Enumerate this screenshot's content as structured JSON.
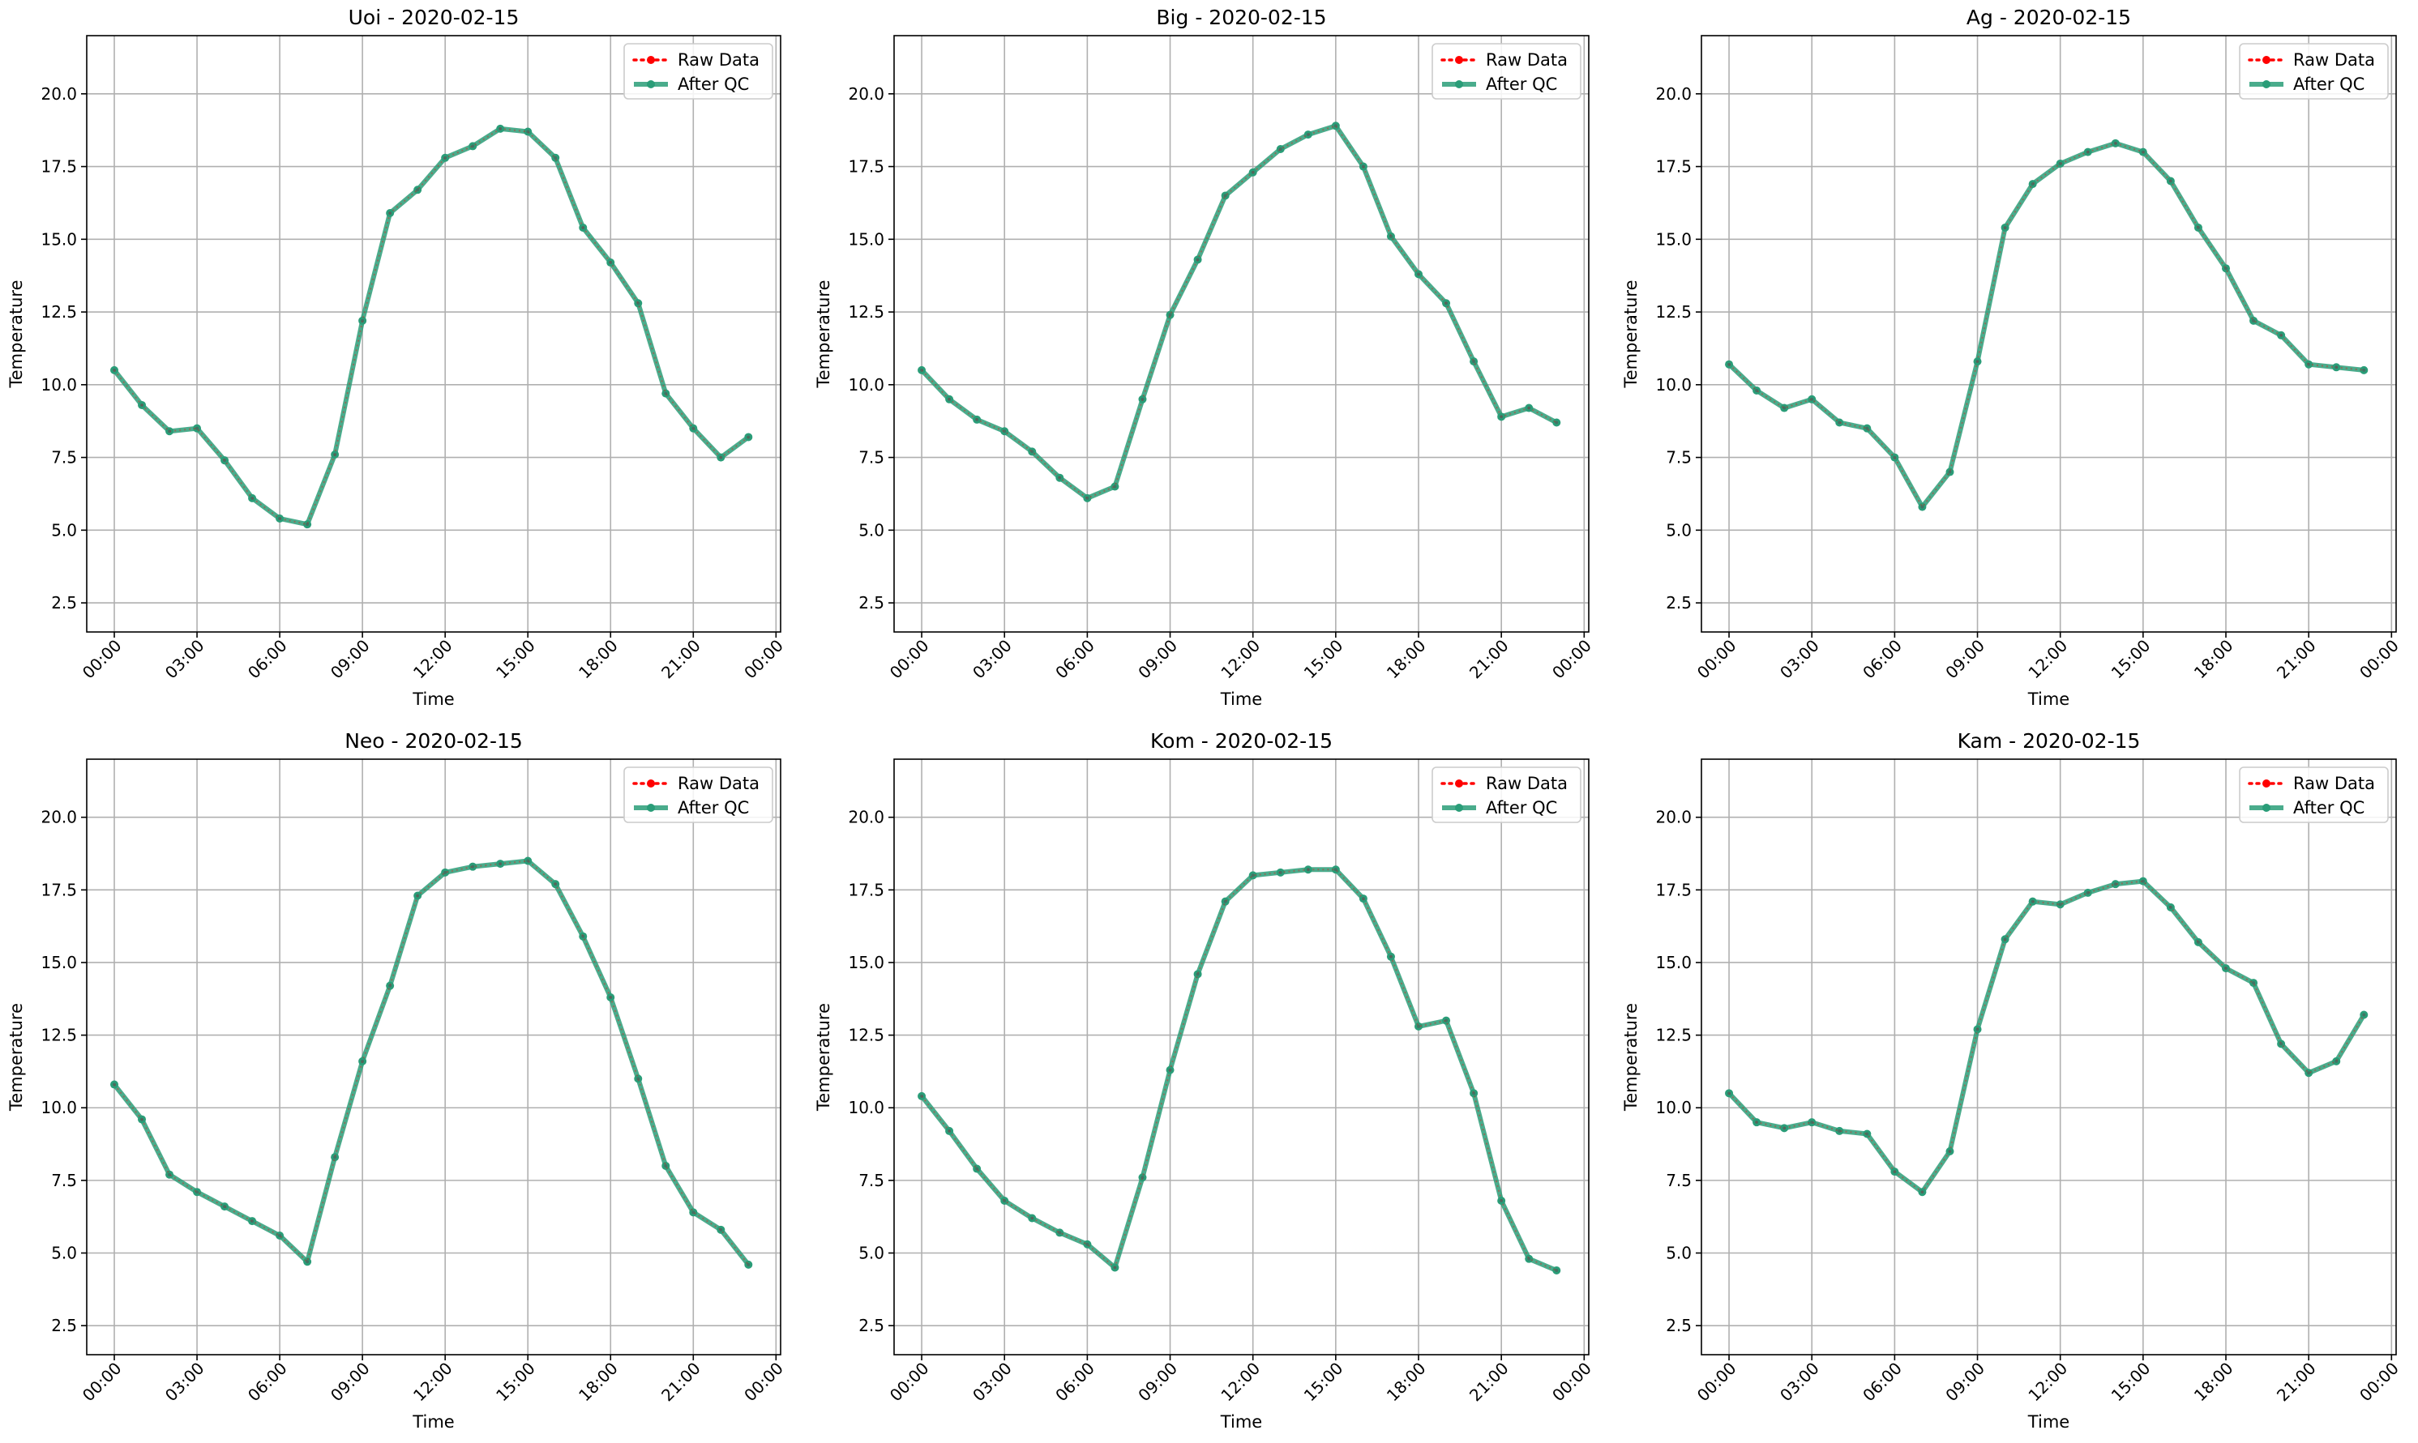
{
  "colors": {
    "raw": "#ff0000",
    "qc": "#2a9d78",
    "grid": "#b0b0b0",
    "axis": "#000000",
    "legend_border": "#cccccc"
  },
  "chart_data": [
    {
      "type": "line",
      "title": "Uoi - 2020-02-15",
      "xlabel": "Time",
      "ylabel": "Temperature",
      "x_tick_labels": [
        "00:00",
        "03:00",
        "06:00",
        "09:00",
        "12:00",
        "15:00",
        "18:00",
        "21:00",
        "00:00"
      ],
      "y_tick_labels": [
        "2.5",
        "5.0",
        "7.5",
        "10.0",
        "12.5",
        "15.0",
        "17.5",
        "20.0"
      ],
      "x": [
        "00:00",
        "01:00",
        "02:00",
        "03:00",
        "04:00",
        "05:00",
        "06:00",
        "07:00",
        "08:00",
        "09:00",
        "10:00",
        "11:00",
        "12:00",
        "13:00",
        "14:00",
        "15:00",
        "16:00",
        "17:00",
        "18:00",
        "19:00",
        "20:00",
        "21:00",
        "22:00",
        "23:00"
      ],
      "xlim": [
        "-01:00",
        "24:10"
      ],
      "ylim": [
        1.5,
        22.0
      ],
      "grid": true,
      "legend_position": "top-right",
      "series": [
        {
          "name": "Raw Data",
          "style": "dotted-red",
          "values": [
            10.5,
            9.3,
            8.4,
            8.5,
            7.4,
            6.1,
            5.4,
            5.2,
            7.6,
            12.2,
            15.9,
            16.7,
            17.8,
            18.2,
            18.8,
            18.7,
            17.8,
            15.4,
            14.2,
            12.8,
            9.7,
            8.5,
            7.5,
            8.2
          ]
        },
        {
          "name": "After QC",
          "style": "solid-green",
          "values": [
            10.5,
            9.3,
            8.4,
            8.5,
            7.4,
            6.1,
            5.4,
            5.2,
            7.6,
            12.2,
            15.9,
            16.7,
            17.8,
            18.2,
            18.8,
            18.7,
            17.8,
            15.4,
            14.2,
            12.8,
            9.7,
            8.5,
            7.5,
            8.2
          ]
        }
      ]
    },
    {
      "type": "line",
      "title": "Big - 2020-02-15",
      "xlabel": "Time",
      "ylabel": "Temperature",
      "x_tick_labels": [
        "00:00",
        "03:00",
        "06:00",
        "09:00",
        "12:00",
        "15:00",
        "18:00",
        "21:00",
        "00:00"
      ],
      "y_tick_labels": [
        "2.5",
        "5.0",
        "7.5",
        "10.0",
        "12.5",
        "15.0",
        "17.5",
        "20.0"
      ],
      "x": [
        "00:00",
        "01:00",
        "02:00",
        "03:00",
        "04:00",
        "05:00",
        "06:00",
        "07:00",
        "08:00",
        "09:00",
        "10:00",
        "11:00",
        "12:00",
        "13:00",
        "14:00",
        "15:00",
        "16:00",
        "17:00",
        "18:00",
        "19:00",
        "20:00",
        "21:00",
        "22:00",
        "23:00"
      ],
      "xlim": [
        "-01:00",
        "24:10"
      ],
      "ylim": [
        1.5,
        22.0
      ],
      "grid": true,
      "legend_position": "top-right",
      "series": [
        {
          "name": "Raw Data",
          "style": "dotted-red",
          "values": [
            10.5,
            9.5,
            8.8,
            8.4,
            7.7,
            6.8,
            6.1,
            6.5,
            9.5,
            12.4,
            14.3,
            16.5,
            17.3,
            18.1,
            18.6,
            18.9,
            17.5,
            15.1,
            13.8,
            12.8,
            10.8,
            8.9,
            9.2,
            8.7
          ]
        },
        {
          "name": "After QC",
          "style": "solid-green",
          "values": [
            10.5,
            9.5,
            8.8,
            8.4,
            7.7,
            6.8,
            6.1,
            6.5,
            9.5,
            12.4,
            14.3,
            16.5,
            17.3,
            18.1,
            18.6,
            18.9,
            17.5,
            15.1,
            13.8,
            12.8,
            10.8,
            8.9,
            9.2,
            8.7
          ]
        }
      ]
    },
    {
      "type": "line",
      "title": "Ag - 2020-02-15",
      "xlabel": "Time",
      "ylabel": "Temperature",
      "x_tick_labels": [
        "00:00",
        "03:00",
        "06:00",
        "09:00",
        "12:00",
        "15:00",
        "18:00",
        "21:00",
        "00:00"
      ],
      "y_tick_labels": [
        "2.5",
        "5.0",
        "7.5",
        "10.0",
        "12.5",
        "15.0",
        "17.5",
        "20.0"
      ],
      "x": [
        "00:00",
        "01:00",
        "02:00",
        "03:00",
        "04:00",
        "05:00",
        "06:00",
        "07:00",
        "08:00",
        "09:00",
        "10:00",
        "11:00",
        "12:00",
        "13:00",
        "14:00",
        "15:00",
        "16:00",
        "17:00",
        "18:00",
        "19:00",
        "20:00",
        "21:00",
        "22:00",
        "23:00"
      ],
      "xlim": [
        "-01:00",
        "24:10"
      ],
      "ylim": [
        1.5,
        22.0
      ],
      "grid": true,
      "legend_position": "top-right",
      "series": [
        {
          "name": "Raw Data",
          "style": "dotted-red",
          "values": [
            10.7,
            9.8,
            9.2,
            9.5,
            8.7,
            8.5,
            7.5,
            5.8,
            7.0,
            10.8,
            15.4,
            16.9,
            17.6,
            18.0,
            18.3,
            18.0,
            17.0,
            15.4,
            14.0,
            12.2,
            11.7,
            10.7,
            10.6,
            10.5
          ]
        },
        {
          "name": "After QC",
          "style": "solid-green",
          "values": [
            10.7,
            9.8,
            9.2,
            9.5,
            8.7,
            8.5,
            7.5,
            5.8,
            7.0,
            10.8,
            15.4,
            16.9,
            17.6,
            18.0,
            18.3,
            18.0,
            17.0,
            15.4,
            14.0,
            12.2,
            11.7,
            10.7,
            10.6,
            10.5
          ]
        }
      ]
    },
    {
      "type": "line",
      "title": "Neo - 2020-02-15",
      "xlabel": "Time",
      "ylabel": "Temperature",
      "x_tick_labels": [
        "00:00",
        "03:00",
        "06:00",
        "09:00",
        "12:00",
        "15:00",
        "18:00",
        "21:00",
        "00:00"
      ],
      "y_tick_labels": [
        "2.5",
        "5.0",
        "7.5",
        "10.0",
        "12.5",
        "15.0",
        "17.5",
        "20.0"
      ],
      "x": [
        "00:00",
        "01:00",
        "02:00",
        "03:00",
        "04:00",
        "05:00",
        "06:00",
        "07:00",
        "08:00",
        "09:00",
        "10:00",
        "11:00",
        "12:00",
        "13:00",
        "14:00",
        "15:00",
        "16:00",
        "17:00",
        "18:00",
        "19:00",
        "20:00",
        "21:00",
        "22:00",
        "23:00"
      ],
      "xlim": [
        "-01:00",
        "24:10"
      ],
      "ylim": [
        1.5,
        22.0
      ],
      "grid": true,
      "legend_position": "top-right",
      "series": [
        {
          "name": "Raw Data",
          "style": "dotted-red",
          "values": [
            10.8,
            9.6,
            7.7,
            7.1,
            6.6,
            6.1,
            5.6,
            4.7,
            8.3,
            11.6,
            14.2,
            17.3,
            18.1,
            18.3,
            18.4,
            18.5,
            17.7,
            15.9,
            13.8,
            11.0,
            8.0,
            6.4,
            5.8,
            4.6
          ]
        },
        {
          "name": "After QC",
          "style": "solid-green",
          "values": [
            10.8,
            9.6,
            7.7,
            7.1,
            6.6,
            6.1,
            5.6,
            4.7,
            8.3,
            11.6,
            14.2,
            17.3,
            18.1,
            18.3,
            18.4,
            18.5,
            17.7,
            15.9,
            13.8,
            11.0,
            8.0,
            6.4,
            5.8,
            4.6
          ]
        }
      ]
    },
    {
      "type": "line",
      "title": "Kom - 2020-02-15",
      "xlabel": "Time",
      "ylabel": "Temperature",
      "x_tick_labels": [
        "00:00",
        "03:00",
        "06:00",
        "09:00",
        "12:00",
        "15:00",
        "18:00",
        "21:00",
        "00:00"
      ],
      "y_tick_labels": [
        "2.5",
        "5.0",
        "7.5",
        "10.0",
        "12.5",
        "15.0",
        "17.5",
        "20.0"
      ],
      "x": [
        "00:00",
        "01:00",
        "02:00",
        "03:00",
        "04:00",
        "05:00",
        "06:00",
        "07:00",
        "08:00",
        "09:00",
        "10:00",
        "11:00",
        "12:00",
        "13:00",
        "14:00",
        "15:00",
        "16:00",
        "17:00",
        "18:00",
        "19:00",
        "20:00",
        "21:00",
        "22:00",
        "23:00"
      ],
      "xlim": [
        "-01:00",
        "24:10"
      ],
      "ylim": [
        1.5,
        22.0
      ],
      "grid": true,
      "legend_position": "top-right",
      "series": [
        {
          "name": "Raw Data",
          "style": "dotted-red",
          "values": [
            10.4,
            9.2,
            7.9,
            6.8,
            6.2,
            5.7,
            5.3,
            4.5,
            7.6,
            11.3,
            14.6,
            17.1,
            18.0,
            18.1,
            18.2,
            18.2,
            17.2,
            15.2,
            12.8,
            13.0,
            10.5,
            6.8,
            4.8,
            4.4
          ]
        },
        {
          "name": "After QC",
          "style": "solid-green",
          "values": [
            10.4,
            9.2,
            7.9,
            6.8,
            6.2,
            5.7,
            5.3,
            4.5,
            7.6,
            11.3,
            14.6,
            17.1,
            18.0,
            18.1,
            18.2,
            18.2,
            17.2,
            15.2,
            12.8,
            13.0,
            10.5,
            6.8,
            4.8,
            4.4
          ]
        }
      ]
    },
    {
      "type": "line",
      "title": "Kam - 2020-02-15",
      "xlabel": "Time",
      "ylabel": "Temperature",
      "x_tick_labels": [
        "00:00",
        "03:00",
        "06:00",
        "09:00",
        "12:00",
        "15:00",
        "18:00",
        "21:00",
        "00:00"
      ],
      "y_tick_labels": [
        "2.5",
        "5.0",
        "7.5",
        "10.0",
        "12.5",
        "15.0",
        "17.5",
        "20.0"
      ],
      "x": [
        "00:00",
        "01:00",
        "02:00",
        "03:00",
        "04:00",
        "05:00",
        "06:00",
        "07:00",
        "08:00",
        "09:00",
        "10:00",
        "11:00",
        "12:00",
        "13:00",
        "14:00",
        "15:00",
        "16:00",
        "17:00",
        "18:00",
        "19:00",
        "20:00",
        "21:00",
        "22:00",
        "23:00"
      ],
      "xlim": [
        "-01:00",
        "24:10"
      ],
      "ylim": [
        1.5,
        22.0
      ],
      "grid": true,
      "legend_position": "top-right",
      "series": [
        {
          "name": "Raw Data",
          "style": "dotted-red",
          "values": [
            10.5,
            9.5,
            9.3,
            9.5,
            9.2,
            9.1,
            7.8,
            7.1,
            8.5,
            12.7,
            15.8,
            17.1,
            17.0,
            17.4,
            17.7,
            17.8,
            16.9,
            15.7,
            14.8,
            14.3,
            12.2,
            11.2,
            11.6,
            13.2
          ]
        },
        {
          "name": "After QC",
          "style": "solid-green",
          "values": [
            10.5,
            9.5,
            9.3,
            9.5,
            9.2,
            9.1,
            7.8,
            7.1,
            8.5,
            12.7,
            15.8,
            17.1,
            17.0,
            17.4,
            17.7,
            17.8,
            16.9,
            15.7,
            14.8,
            14.3,
            12.2,
            11.2,
            11.6,
            13.2
          ]
        }
      ]
    }
  ]
}
